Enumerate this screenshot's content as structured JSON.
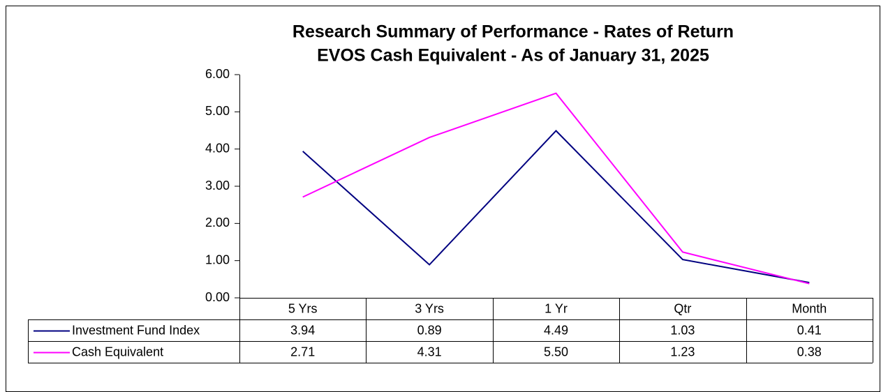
{
  "chart_data": {
    "type": "line",
    "title": "Research Summary of Performance - Rates of Return",
    "subtitle": "EVOS Cash Equivalent - As of January 31, 2025",
    "categories": [
      "5 Yrs",
      "3 Yrs",
      "1 Yr",
      "Qtr",
      "Month"
    ],
    "series": [
      {
        "name": "Investment Fund Index",
        "color": "#000080",
        "values": [
          3.94,
          0.89,
          4.49,
          1.03,
          0.41
        ],
        "value_labels": [
          "3.94",
          "0.89",
          "4.49",
          "1.03",
          "0.41"
        ]
      },
      {
        "name": "Cash Equivalent",
        "color": "#ff00ff",
        "values": [
          2.71,
          4.31,
          5.5,
          1.23,
          0.38
        ],
        "value_labels": [
          "2.71",
          "4.31",
          "5.50",
          "1.23",
          "0.38"
        ]
      }
    ],
    "ylim": [
      0,
      6
    ],
    "yticks": [
      {
        "value": 0,
        "label": "0.00"
      },
      {
        "value": 1,
        "label": "1.00"
      },
      {
        "value": 2,
        "label": "2.00"
      },
      {
        "value": 3,
        "label": "3.00"
      },
      {
        "value": 4,
        "label": "4.00"
      },
      {
        "value": 5,
        "label": "5.00"
      },
      {
        "value": 6,
        "label": "6.00"
      }
    ]
  }
}
